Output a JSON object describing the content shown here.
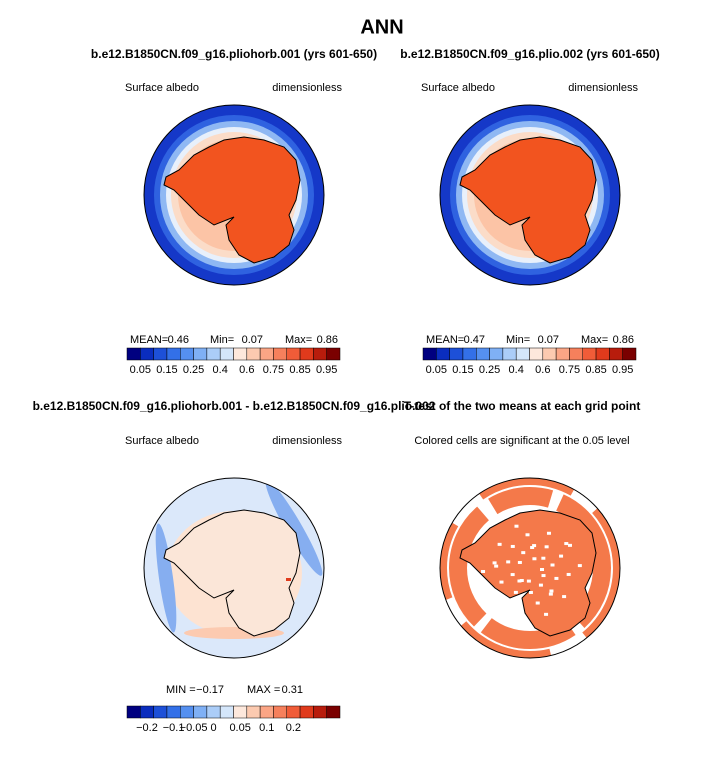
{
  "title": "ANN",
  "panels": [
    {
      "title": "b.e12.B1850CN.f09_g16.pliohorb.001 (yrs 601-650)",
      "left_label": "Surface albedo",
      "right_label": "dimensionless",
      "stats": [
        "MEAN=",
        "0.46",
        "Min=",
        "0.07",
        "Max=",
        "0.86"
      ],
      "colorbar_labels": [
        "0.05",
        "0.15",
        "0.25",
        "0.4",
        "0.6",
        "0.75",
        "0.85",
        "0.95"
      ]
    },
    {
      "title": "b.e12.B1850CN.f09_g16.plio.002 (yrs 601-650)",
      "left_label": "Surface albedo",
      "right_label": "dimensionless",
      "stats": [
        "MEAN=",
        "0.47",
        "Min=",
        "0.07",
        "Max=",
        "0.86"
      ],
      "colorbar_labels": [
        "0.05",
        "0.15",
        "0.25",
        "0.4",
        "0.6",
        "0.75",
        "0.85",
        "0.95"
      ]
    },
    {
      "title": "b.e12.B1850CN.f09_g16.pliohorb.001 - b.e12.B1850CN.f09_g16.plio.002",
      "left_label": "Surface albedo",
      "right_label": "dimensionless",
      "stats": [
        "MIN =",
        "−0.17",
        "MAX =",
        "0.31"
      ],
      "colorbar_labels": [
        "−0.2",
        "−0.1",
        "−0.05",
        "0",
        "0.05",
        "0.1",
        "0.2"
      ]
    },
    {
      "title": "T-test of the two means at each grid point",
      "subtitle": "Colored cells are significant at the 0.05 level"
    }
  ]
}
